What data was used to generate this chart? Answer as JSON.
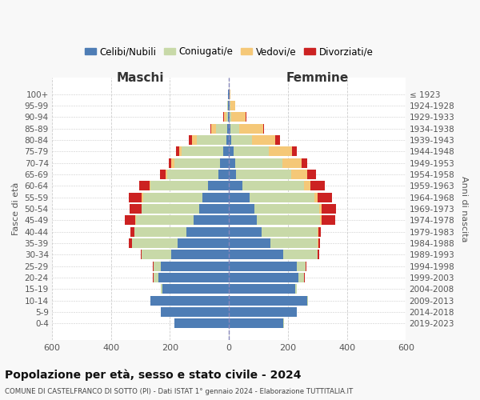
{
  "age_groups": [
    "0-4",
    "5-9",
    "10-14",
    "15-19",
    "20-24",
    "25-29",
    "30-34",
    "35-39",
    "40-44",
    "45-49",
    "50-54",
    "55-59",
    "60-64",
    "65-69",
    "70-74",
    "75-79",
    "80-84",
    "85-89",
    "90-94",
    "95-99",
    "100+"
  ],
  "birth_years": [
    "2019-2023",
    "2014-2018",
    "2009-2013",
    "2004-2008",
    "1999-2003",
    "1994-1998",
    "1989-1993",
    "1984-1988",
    "1979-1983",
    "1974-1978",
    "1969-1973",
    "1964-1968",
    "1959-1963",
    "1954-1958",
    "1949-1953",
    "1944-1948",
    "1939-1943",
    "1934-1938",
    "1929-1933",
    "1924-1928",
    "≤ 1923"
  ],
  "maschi": {
    "celibi": [
      185,
      230,
      265,
      225,
      240,
      230,
      195,
      175,
      145,
      120,
      100,
      90,
      70,
      35,
      30,
      20,
      10,
      5,
      2,
      2,
      2
    ],
    "coniugati": [
      1,
      1,
      2,
      5,
      15,
      25,
      100,
      155,
      175,
      195,
      195,
      200,
      195,
      175,
      155,
      140,
      100,
      40,
      8,
      3,
      1
    ],
    "vedovi": [
      0,
      0,
      0,
      0,
      0,
      0,
      0,
      0,
      0,
      2,
      2,
      5,
      5,
      5,
      10,
      10,
      15,
      15,
      8,
      2,
      0
    ],
    "divorziati": [
      0,
      0,
      0,
      1,
      2,
      2,
      5,
      10,
      15,
      35,
      40,
      45,
      35,
      20,
      10,
      10,
      10,
      3,
      2,
      0,
      0
    ]
  },
  "femmine": {
    "nubili": [
      185,
      230,
      265,
      225,
      235,
      230,
      185,
      140,
      110,
      95,
      85,
      70,
      45,
      25,
      20,
      15,
      8,
      5,
      2,
      2,
      2
    ],
    "coniugate": [
      1,
      1,
      2,
      5,
      20,
      30,
      115,
      160,
      190,
      215,
      220,
      220,
      210,
      185,
      160,
      120,
      70,
      30,
      5,
      3,
      1
    ],
    "vedove": [
      0,
      0,
      0,
      0,
      0,
      0,
      1,
      2,
      2,
      5,
      8,
      10,
      20,
      55,
      65,
      80,
      80,
      80,
      50,
      15,
      2
    ],
    "divorziate": [
      0,
      0,
      0,
      1,
      2,
      2,
      5,
      8,
      10,
      45,
      50,
      50,
      50,
      30,
      20,
      15,
      15,
      5,
      2,
      0,
      0
    ]
  },
  "colors": {
    "celibi_nubili": "#4e7db5",
    "coniugati": "#c8d9a8",
    "vedovi": "#f5c878",
    "divorziati": "#cc2222"
  },
  "xlim": 600,
  "title": "Popolazione per età, sesso e stato civile - 2024",
  "subtitle": "COMUNE DI CASTELFRANCO DI SOTTO (PI) - Dati ISTAT 1° gennaio 2024 - Elaborazione TUTTITALIA.IT",
  "ylabel_left": "Fasce di età",
  "ylabel_right": "Anni di nascita",
  "xlabel_left": "Maschi",
  "xlabel_right": "Femmine",
  "legend_labels": [
    "Celibi/Nubili",
    "Coniugati/e",
    "Vedovi/e",
    "Divorziati/e"
  ],
  "bg_color": "#f8f8f8",
  "plot_bg_color": "#ffffff"
}
